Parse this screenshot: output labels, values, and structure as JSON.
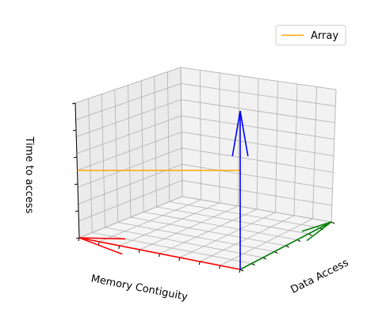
{
  "chart_data": {
    "type": "line",
    "projection": "3d",
    "title": "",
    "xlabel": "Memory Contiguity",
    "ylabel": "Data Access",
    "zlabel": "Time to access",
    "tick_labels": "none",
    "grid": true,
    "legend_position": "top-right",
    "series": [
      {
        "name": "Array",
        "color": "#ffa500",
        "points": [
          [
            0,
            0,
            0.5
          ],
          [
            1,
            0,
            0.5
          ]
        ]
      }
    ],
    "arrows": [
      {
        "axis": "x",
        "color": "#ff0000",
        "from": [
          1,
          0,
          0
        ],
        "to": [
          0,
          0,
          0
        ]
      },
      {
        "axis": "y",
        "color": "#008000",
        "from": [
          1,
          0,
          0
        ],
        "to": [
          1,
          1,
          0
        ]
      },
      {
        "axis": "z",
        "color": "#0000ff",
        "from": [
          1,
          0,
          0
        ],
        "to": [
          1,
          0,
          0.8
        ]
      }
    ]
  }
}
